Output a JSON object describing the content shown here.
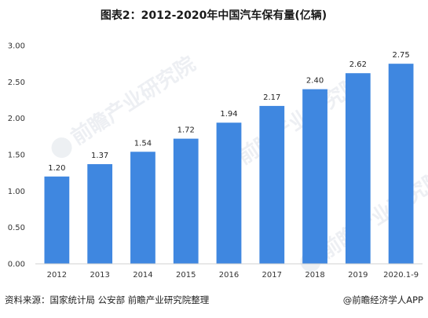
{
  "chart_data": {
    "type": "bar",
    "title": "图表2：2012-2020年中国汽车保有量(亿辆)",
    "categories": [
      "2012",
      "2013",
      "2014",
      "2015",
      "2016",
      "2017",
      "2018",
      "2019",
      "2020.1-9"
    ],
    "values": [
      1.2,
      1.37,
      1.54,
      1.72,
      1.94,
      2.17,
      2.4,
      2.62,
      2.75
    ],
    "data_labels": [
      "1.20",
      "1.37",
      "1.54",
      "1.72",
      "1.94",
      "2.17",
      "2.40",
      "2.62",
      "2.75"
    ],
    "y_ticks": [
      "3.00",
      "2.50",
      "2.00",
      "1.50",
      "1.00",
      "0.50",
      "0.00"
    ],
    "y_tick_values": [
      3.0,
      2.5,
      2.0,
      1.5,
      1.0,
      0.5,
      0.0
    ],
    "ylim": [
      0,
      3
    ],
    "grid": false,
    "legend": "none",
    "bar_color": "#3f87e0"
  },
  "footer": {
    "source": "资料来源：国家统计局 公安部 前瞻产业研究院整理",
    "brand": "@前瞻经济学人APP"
  },
  "watermark": {
    "text": "前瞻产业研究院"
  },
  "colors": {
    "bar": "#3f87e0",
    "axis": "#d0d0d0",
    "watermark": "#dfe3ea"
  }
}
